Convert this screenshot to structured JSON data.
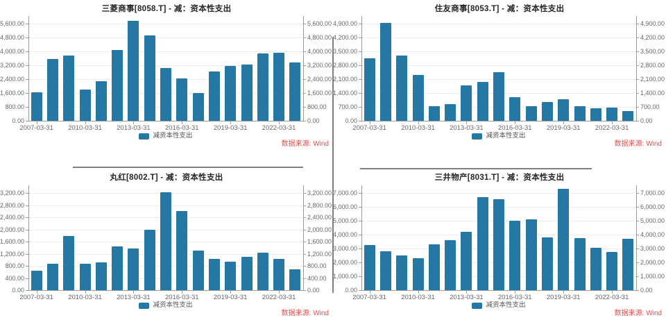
{
  "source_label": "数据来源: Wind",
  "legend_label": "减资本性支出",
  "colors": {
    "bar": "#2578a3",
    "title_text": "#262626",
    "axis_line": "#999999",
    "grid_line": "#dddddd",
    "tick_label": "#666666",
    "source_text": "#e25050",
    "divider": "#7f7f7f"
  },
  "chart_data": [
    {
      "type": "bar",
      "title": "三菱商事[8058.T] - 减：资本性支出",
      "legend": "减资本性支出",
      "ylabel": "",
      "xlabel": "",
      "ylim": [
        0,
        5600
      ],
      "ystep": 800,
      "grid": true,
      "legend_position": "bottom",
      "categories": [
        "2007-03-31",
        "2008-03-31",
        "2009-03-31",
        "2010-03-31",
        "2011-03-31",
        "2012-03-31",
        "2013-03-31",
        "2014-03-31",
        "2015-03-31",
        "2016-03-31",
        "2017-03-31",
        "2018-03-31",
        "2019-03-31",
        "2020-03-31",
        "2021-03-31",
        "2022-03-31",
        "2023-03-31"
      ],
      "values": [
        1650,
        3580,
        3780,
        1820,
        2270,
        4100,
        5770,
        4940,
        3060,
        2460,
        1600,
        2840,
        3170,
        3250,
        3880,
        3920,
        3350
      ],
      "x_tick_labels": [
        "2007-03-31",
        "2010-03-31",
        "2013-03-31",
        "2016-03-31",
        "2019-03-31",
        "2022-03-31"
      ],
      "x_tick_indices": [
        0,
        3,
        6,
        9,
        12,
        15
      ]
    },
    {
      "type": "bar",
      "title": "住友商事[8053.T] - 减：资本性支出",
      "legend": "减资本性支出",
      "ylabel": "",
      "xlabel": "",
      "ylim": [
        0,
        4900
      ],
      "ystep": 700,
      "grid": true,
      "legend_position": "bottom",
      "categories": [
        "2007-03-31",
        "2008-03-31",
        "2009-03-31",
        "2010-03-31",
        "2011-03-31",
        "2012-03-31",
        "2013-03-31",
        "2014-03-31",
        "2015-03-31",
        "2016-03-31",
        "2017-03-31",
        "2018-03-31",
        "2019-03-31",
        "2020-03-31",
        "2021-03-31",
        "2022-03-31",
        "2023-03-31"
      ],
      "values": [
        3150,
        4950,
        3300,
        2300,
        730,
        850,
        1800,
        1950,
        2460,
        1180,
        720,
        960,
        1070,
        750,
        640,
        680,
        500
      ],
      "x_tick_labels": [
        "2007-03-31",
        "2010-03-31",
        "2013-03-31",
        "2016-03-31",
        "2019-03-31",
        "2022-03-31"
      ],
      "x_tick_indices": [
        0,
        3,
        6,
        9,
        12,
        15
      ]
    },
    {
      "type": "bar",
      "title": "丸红[8002.T] - 减：资本性支出",
      "legend": "减资本性支出",
      "ylabel": "",
      "xlabel": "",
      "ylim": [
        0,
        3200
      ],
      "ystep": 400,
      "grid": true,
      "legend_position": "bottom",
      "categories": [
        "2007-03-31",
        "2008-03-31",
        "2009-03-31",
        "2010-03-31",
        "2011-03-31",
        "2012-03-31",
        "2013-03-31",
        "2014-03-31",
        "2015-03-31",
        "2016-03-31",
        "2017-03-31",
        "2018-03-31",
        "2019-03-31",
        "2020-03-31",
        "2021-03-31",
        "2022-03-31",
        "2023-03-31"
      ],
      "values": [
        650,
        870,
        1790,
        870,
        910,
        1430,
        1380,
        1990,
        3230,
        2600,
        1310,
        1030,
        930,
        1090,
        1240,
        1020,
        690
      ],
      "x_tick_labels": [
        "2007-03-31",
        "2010-03-31",
        "2013-03-31",
        "2016-03-31",
        "2019-03-31",
        "2022-03-31"
      ],
      "x_tick_indices": [
        0,
        3,
        6,
        9,
        12,
        15
      ]
    },
    {
      "type": "bar",
      "title": "三井物产[8031.T] - 减：资本性支出",
      "legend": "减资本性支出",
      "ylabel": "",
      "xlabel": "",
      "ylim": [
        0,
        7000
      ],
      "ystep": 1000,
      "grid": true,
      "legend_position": "bottom",
      "categories": [
        "2007-03-31",
        "2008-03-31",
        "2009-03-31",
        "2010-03-31",
        "2011-03-31",
        "2012-03-31",
        "2013-03-31",
        "2014-03-31",
        "2015-03-31",
        "2016-03-31",
        "2017-03-31",
        "2018-03-31",
        "2019-03-31",
        "2020-03-31",
        "2021-03-31",
        "2022-03-31",
        "2023-03-31"
      ],
      "values": [
        3250,
        2780,
        2500,
        2300,
        3300,
        3620,
        4180,
        6720,
        6560,
        5000,
        5100,
        3780,
        7280,
        3730,
        3040,
        2750,
        3720
      ],
      "x_tick_labels": [
        "2007-03-31",
        "2010-03-31",
        "2013-03-31",
        "2016-03-31",
        "2019-03-31",
        "2022-03-31"
      ],
      "x_tick_indices": [
        0,
        3,
        6,
        9,
        12,
        15
      ]
    }
  ]
}
